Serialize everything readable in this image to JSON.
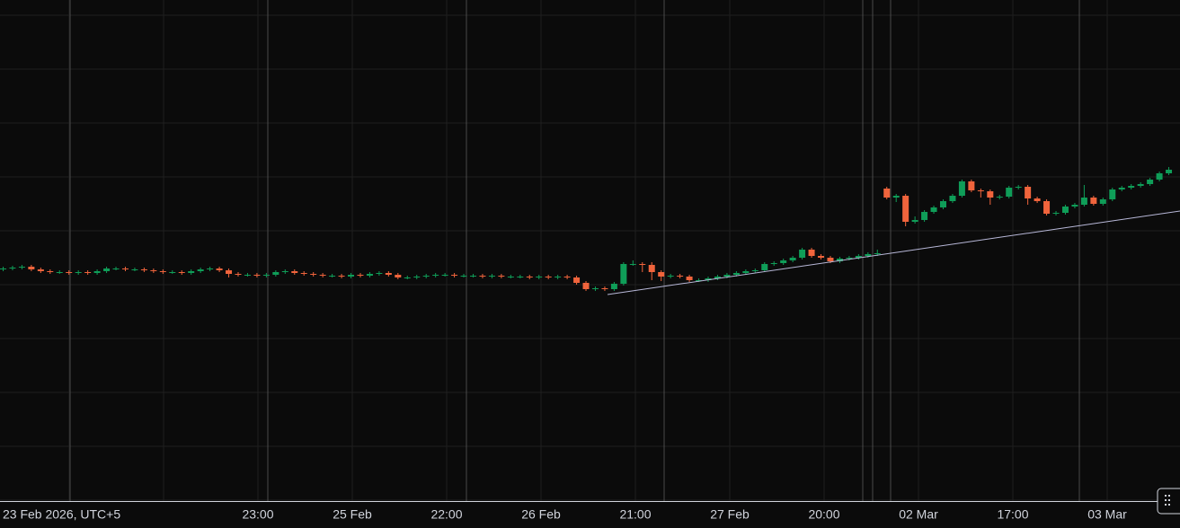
{
  "chart_data": {
    "type": "candlestick",
    "up_color": "#0f9d58",
    "down_color": "#f0643c",
    "ylim": [
      0,
      558
    ],
    "x_labels": [
      "23 Feb 2026, UTC+5",
      "23:00",
      "25 Feb",
      "22:00",
      "26 Feb",
      "21:00",
      "27 Feb",
      "20:00",
      "02 Mar",
      "17:00",
      "03 Mar"
    ],
    "open": [
      258,
      259,
      260,
      261,
      258,
      256,
      255,
      255,
      254,
      255,
      254,
      256,
      259,
      259,
      258,
      258,
      257,
      256,
      255,
      255,
      254,
      256,
      258,
      259,
      257,
      253,
      252,
      252,
      251,
      252,
      255,
      256,
      254,
      253,
      252,
      251,
      251,
      250,
      252,
      251,
      253,
      254,
      252,
      249,
      249,
      250,
      251,
      252,
      252,
      251,
      251,
      251,
      250,
      251,
      250,
      250,
      250,
      249,
      250,
      249,
      250,
      249,
      243,
      236,
      237,
      236,
      242,
      264,
      264,
      263,
      255,
      250,
      251,
      250,
      246,
      246,
      248,
      250,
      252,
      254,
      256,
      257,
      264,
      265,
      268,
      271,
      280,
      273,
      271,
      267,
      270,
      271,
      273,
      275,
      348,
      338,
      340,
      311,
      313,
      322,
      327,
      334,
      340,
      356,
      346,
      345,
      338,
      339,
      349,
      350,
      337,
      334,
      320,
      321,
      328,
      330,
      338,
      331,
      336,
      347,
      349,
      351,
      353,
      358,
      365
    ],
    "high": [
      261,
      262,
      263,
      263,
      260,
      258,
      257,
      257,
      257,
      257,
      258,
      261,
      261,
      261,
      260,
      260,
      259,
      258,
      257,
      257,
      258,
      260,
      261,
      261,
      259,
      255,
      254,
      254,
      254,
      257,
      258,
      258,
      256,
      255,
      254,
      253,
      253,
      254,
      254,
      255,
      256,
      256,
      254,
      251,
      252,
      253,
      254,
      254,
      254,
      253,
      253,
      253,
      253,
      253,
      252,
      252,
      252,
      252,
      252,
      252,
      252,
      251,
      245,
      239,
      239,
      244,
      266,
      268,
      266,
      266,
      257,
      253,
      253,
      252,
      248,
      250,
      252,
      254,
      256,
      258,
      259,
      266,
      267,
      270,
      273,
      282,
      282,
      275,
      273,
      272,
      273,
      275,
      277,
      280,
      350,
      342,
      342,
      317,
      324,
      329,
      336,
      342,
      358,
      358,
      348,
      347,
      341,
      351,
      352,
      352,
      339,
      336,
      323,
      330,
      332,
      352,
      340,
      338,
      349,
      351,
      353,
      355,
      360,
      367,
      372
    ],
    "low": [
      256,
      257,
      258,
      256,
      254,
      253,
      253,
      252,
      252,
      252,
      252,
      254,
      257,
      256,
      256,
      255,
      254,
      253,
      253,
      252,
      252,
      254,
      256,
      255,
      249,
      250,
      250,
      249,
      249,
      250,
      253,
      252,
      251,
      250,
      249,
      249,
      248,
      248,
      249,
      249,
      251,
      250,
      247,
      247,
      247,
      248,
      249,
      250,
      249,
      249,
      249,
      248,
      248,
      248,
      248,
      248,
      247,
      247,
      247,
      247,
      247,
      241,
      234,
      234,
      234,
      234,
      240,
      262,
      255,
      246,
      245,
      248,
      248,
      244,
      244,
      244,
      246,
      248,
      250,
      252,
      254,
      255,
      262,
      263,
      266,
      269,
      271,
      269,
      265,
      265,
      268,
      269,
      271,
      273,
      336,
      333,
      306,
      309,
      311,
      320,
      325,
      332,
      338,
      344,
      338,
      330,
      336,
      337,
      347,
      330,
      332,
      318,
      318,
      319,
      326,
      328,
      329,
      329,
      334,
      345,
      347,
      349,
      351,
      356,
      363
    ],
    "close": [
      259,
      260,
      261,
      258,
      256,
      255,
      255,
      254,
      255,
      254,
      256,
      259,
      259,
      258,
      258,
      257,
      256,
      255,
      255,
      254,
      256,
      258,
      259,
      257,
      253,
      252,
      252,
      251,
      252,
      255,
      256,
      254,
      253,
      252,
      251,
      251,
      250,
      252,
      251,
      253,
      254,
      252,
      249,
      249,
      250,
      251,
      252,
      252,
      251,
      251,
      251,
      250,
      251,
      250,
      250,
      250,
      249,
      250,
      249,
      250,
      249,
      243,
      236,
      237,
      236,
      242,
      264,
      264,
      263,
      255,
      250,
      251,
      250,
      246,
      246,
      248,
      250,
      252,
      254,
      256,
      257,
      264,
      265,
      268,
      271,
      280,
      273,
      271,
      267,
      270,
      271,
      273,
      275,
      276,
      338,
      340,
      311,
      313,
      322,
      327,
      334,
      340,
      356,
      346,
      345,
      338,
      339,
      349,
      350,
      337,
      334,
      320,
      321,
      328,
      330,
      338,
      331,
      336,
      347,
      349,
      351,
      353,
      358,
      365,
      369
    ]
  }
}
